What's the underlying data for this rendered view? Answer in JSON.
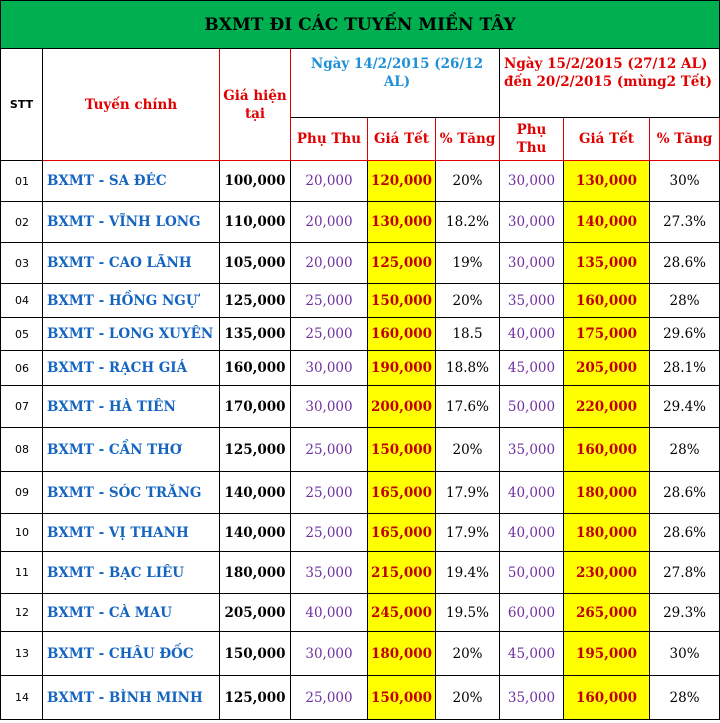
{
  "title": "BXMT ĐI CÁC TUYẾN MIỀN TÂY",
  "headers": {
    "stt": "STT",
    "route": "Tuyến chính",
    "current_price": "Giá hiện tại",
    "period1": "Ngày 14/2/2015 (26/12 AL)",
    "period2": "Ngày 15/2/2015 (27/12 AL) đến 20/2/2015 (mùng2 Tết)",
    "surcharge": "Phụ Thu",
    "tet_price": "Giá Tết",
    "increase": "% Tăng"
  },
  "rows": [
    {
      "stt": "01",
      "route": "BXMT - SA ĐÉC",
      "price": "100,000",
      "p1_sur": "20,000",
      "p1_tet": "120,000",
      "p1_pct": "20%",
      "p2_sur": "30,000",
      "p2_tet": "130,000",
      "p2_pct": "30%"
    },
    {
      "stt": "02",
      "route": "BXMT - VĨNH LONG",
      "price": "110,000",
      "p1_sur": "20,000",
      "p1_tet": "130,000",
      "p1_pct": "18.2%",
      "p2_sur": "30,000",
      "p2_tet": "140,000",
      "p2_pct": "27.3%"
    },
    {
      "stt": "03",
      "route": "BXMT - CAO LÃNH",
      "price": "105,000",
      "p1_sur": "20,000",
      "p1_tet": "125,000",
      "p1_pct": "19%",
      "p2_sur": "30,000",
      "p2_tet": "135,000",
      "p2_pct": "28.6%"
    },
    {
      "stt": "04",
      "route": "BXMT - HỒNG NGỰ",
      "price": "125,000",
      "p1_sur": "25,000",
      "p1_tet": "150,000",
      "p1_pct": "20%",
      "p2_sur": "35,000",
      "p2_tet": "160,000",
      "p2_pct": "28%"
    },
    {
      "stt": "05",
      "route": "BXMT - LONG XUYÊN",
      "price": "135,000",
      "p1_sur": "25,000",
      "p1_tet": "160,000",
      "p1_pct": "18.5",
      "p2_sur": "40,000",
      "p2_tet": "175,000",
      "p2_pct": "29.6%"
    },
    {
      "stt": "06",
      "route": "BXMT - RẠCH GIÁ",
      "price": "160,000",
      "p1_sur": "30,000",
      "p1_tet": "190,000",
      "p1_pct": "18.8%",
      "p2_sur": "45,000",
      "p2_tet": "205,000",
      "p2_pct": "28.1%"
    },
    {
      "stt": "07",
      "route": "BXMT - HÀ TIÊN",
      "price": "170,000",
      "p1_sur": "30,000",
      "p1_tet": "200,000",
      "p1_pct": "17.6%",
      "p2_sur": "50,000",
      "p2_tet": "220,000",
      "p2_pct": "29.4%"
    },
    {
      "stt": "08",
      "route": "BXMT - CẦN THƠ",
      "price": "125,000",
      "p1_sur": "25,000",
      "p1_tet": "150,000",
      "p1_pct": "20%",
      "p2_sur": "35,000",
      "p2_tet": "160,000",
      "p2_pct": "28%"
    },
    {
      "stt": "09",
      "route": "BXMT - SÓC TRĂNG",
      "price": "140,000",
      "p1_sur": "25,000",
      "p1_tet": "165,000",
      "p1_pct": "17.9%",
      "p2_sur": "40,000",
      "p2_tet": "180,000",
      "p2_pct": "28.6%"
    },
    {
      "stt": "10",
      "route": "BXMT - VỊ THANH",
      "price": "140,000",
      "p1_sur": "25,000",
      "p1_tet": "165,000",
      "p1_pct": "17.9%",
      "p2_sur": "40,000",
      "p2_tet": "180,000",
      "p2_pct": "28.6%"
    },
    {
      "stt": "11",
      "route": "BXMT - BẠC LIÊU",
      "price": "180,000",
      "p1_sur": "35,000",
      "p1_tet": "215,000",
      "p1_pct": "19.4%",
      "p2_sur": "50,000",
      "p2_tet": "230,000",
      "p2_pct": "27.8%"
    },
    {
      "stt": "12",
      "route": "BXMT - CÀ MAU",
      "price": "205,000",
      "p1_sur": "40,000",
      "p1_tet": "245,000",
      "p1_pct": "19.5%",
      "p2_sur": "60,000",
      "p2_tet": "265,000",
      "p2_pct": "29.3%"
    },
    {
      "stt": "13",
      "route": "BXMT - CHÂU ĐỐC",
      "price": "150,000",
      "p1_sur": "30,000",
      "p1_tet": "180,000",
      "p1_pct": "20%",
      "p2_sur": "45,000",
      "p2_tet": "195,000",
      "p2_pct": "30%"
    },
    {
      "stt": "14",
      "route": "BXMT - BÌNH MINH",
      "price": "125,000",
      "p1_sur": "25,000",
      "p1_tet": "150,000",
      "p1_pct": "20%",
      "p2_sur": "35,000",
      "p2_tet": "160,000",
      "p2_pct": "28%"
    }
  ]
}
